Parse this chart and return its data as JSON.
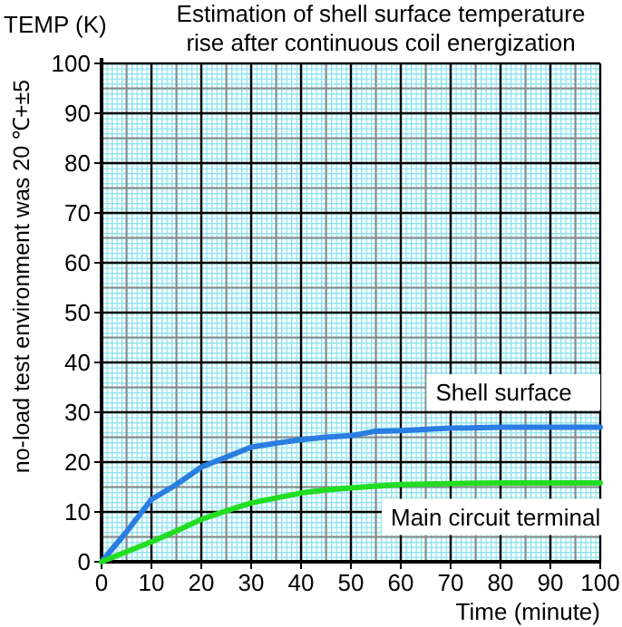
{
  "chart_data": {
    "type": "line",
    "title": "Estimation of shell surface temperature\nrise after continuous coil energization",
    "xlabel": "Time (minute)",
    "ylabel": "TEMP (K)",
    "annotations": [
      "no-load test environment was 20 ℃+±5"
    ],
    "x": [
      0,
      5,
      10,
      15,
      20,
      25,
      30,
      35,
      40,
      45,
      50,
      55,
      60,
      70,
      80,
      90,
      100
    ],
    "series": [
      {
        "name": "Shell surface",
        "color": "#2a7de1",
        "values": [
          0,
          6,
          12.5,
          15.5,
          19,
          21,
          23,
          23.8,
          24.5,
          25,
          25.3,
          26.2,
          26.3,
          26.8,
          27,
          27,
          27
        ]
      },
      {
        "name": "Main circuit terminal",
        "color": "#22dd22",
        "values": [
          0,
          2,
          4,
          6.2,
          8.5,
          10.2,
          11.8,
          12.8,
          13.8,
          14.4,
          14.8,
          15.2,
          15.5,
          15.7,
          15.8,
          15.8,
          15.8
        ]
      }
    ],
    "xlim": [
      0,
      100
    ],
    "ylim": [
      0,
      100
    ],
    "xticks": [
      0,
      10,
      20,
      30,
      40,
      50,
      60,
      70,
      80,
      90,
      100
    ],
    "yticks": [
      0,
      10,
      20,
      30,
      40,
      50,
      60,
      70,
      80,
      90,
      100
    ],
    "grid": true,
    "line_style": "solid",
    "marker": "none"
  }
}
